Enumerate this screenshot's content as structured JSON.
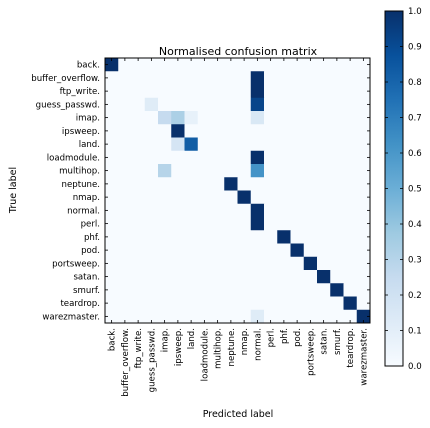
{
  "chart_data": {
    "type": "heatmap",
    "title": "Normalised confusion matrix",
    "xlabel": "Predicted label",
    "ylabel": "True label",
    "labels": [
      "back.",
      "buffer_overflow.",
      "ftp_write.",
      "guess_passwd.",
      "imap.",
      "ipsweep.",
      "land.",
      "loadmodule.",
      "multihop.",
      "neptune.",
      "nmap.",
      "normal.",
      "perl.",
      "phf.",
      "pod.",
      "portsweep.",
      "satan.",
      "smurf.",
      "teardrop.",
      "warezmaster."
    ],
    "matrix": [
      [
        1.0,
        0,
        0,
        0,
        0,
        0,
        0,
        0,
        0,
        0,
        0,
        0,
        0,
        0,
        0,
        0,
        0,
        0,
        0,
        0
      ],
      [
        0,
        0,
        0,
        0,
        0,
        0,
        0,
        0,
        0,
        0,
        0,
        1.0,
        0,
        0,
        0,
        0,
        0,
        0,
        0,
        0
      ],
      [
        0,
        0,
        0,
        0,
        0,
        0,
        0,
        0,
        0,
        0,
        0,
        1.0,
        0,
        0,
        0,
        0,
        0,
        0,
        0,
        0
      ],
      [
        0,
        0,
        0,
        0.12,
        0,
        0,
        0,
        0,
        0,
        0,
        0,
        0.92,
        0,
        0,
        0,
        0,
        0,
        0,
        0,
        0
      ],
      [
        0,
        0,
        0,
        0,
        0.25,
        0.33,
        0.08,
        0,
        0,
        0,
        0,
        0.15,
        0,
        0,
        0,
        0,
        0,
        0,
        0,
        0
      ],
      [
        0,
        0,
        0,
        0,
        0,
        1.0,
        0,
        0,
        0,
        0,
        0,
        0,
        0,
        0,
        0,
        0,
        0,
        0,
        0,
        0
      ],
      [
        0,
        0,
        0,
        0,
        0,
        0.17,
        0.83,
        0,
        0,
        0,
        0,
        0,
        0,
        0,
        0,
        0,
        0,
        0,
        0,
        0
      ],
      [
        0,
        0,
        0,
        0,
        0,
        0,
        0,
        0,
        0,
        0,
        0,
        1.0,
        0,
        0,
        0,
        0,
        0,
        0,
        0,
        0
      ],
      [
        0,
        0,
        0,
        0,
        0.3,
        0,
        0,
        0,
        0,
        0,
        0,
        0.62,
        0,
        0,
        0,
        0,
        0,
        0,
        0,
        0
      ],
      [
        0,
        0,
        0,
        0,
        0,
        0,
        0,
        0,
        0,
        1.0,
        0,
        0,
        0,
        0,
        0,
        0,
        0,
        0,
        0,
        0
      ],
      [
        0,
        0,
        0,
        0,
        0,
        0,
        0,
        0,
        0,
        0,
        1.0,
        0,
        0,
        0,
        0,
        0,
        0,
        0,
        0,
        0
      ],
      [
        0,
        0,
        0,
        0,
        0,
        0,
        0,
        0,
        0,
        0,
        0,
        1.0,
        0,
        0,
        0,
        0,
        0,
        0,
        0,
        0
      ],
      [
        0,
        0,
        0,
        0,
        0,
        0,
        0,
        0,
        0,
        0,
        0,
        1.0,
        0,
        0,
        0,
        0,
        0,
        0,
        0,
        0
      ],
      [
        0,
        0,
        0,
        0,
        0,
        0,
        0,
        0,
        0,
        0,
        0,
        0,
        0,
        1.0,
        0,
        0,
        0,
        0,
        0,
        0
      ],
      [
        0,
        0,
        0,
        0,
        0,
        0,
        0,
        0,
        0,
        0,
        0,
        0,
        0,
        0,
        1.0,
        0,
        0,
        0,
        0,
        0
      ],
      [
        0,
        0,
        0,
        0,
        0,
        0,
        0,
        0,
        0,
        0,
        0,
        0,
        0,
        0,
        0,
        1.0,
        0,
        0,
        0,
        0
      ],
      [
        0,
        0,
        0,
        0,
        0,
        0,
        0,
        0,
        0,
        0,
        0,
        0,
        0,
        0,
        0,
        0,
        1.0,
        0,
        0,
        0
      ],
      [
        0,
        0,
        0,
        0,
        0,
        0,
        0,
        0,
        0,
        0,
        0,
        0,
        0,
        0,
        0,
        0,
        0,
        1.0,
        0,
        0
      ],
      [
        0,
        0,
        0,
        0,
        0,
        0,
        0,
        0,
        0,
        0,
        0,
        0,
        0,
        0,
        0,
        0,
        0,
        0,
        1.0,
        0
      ],
      [
        0,
        0,
        0,
        0,
        0,
        0,
        0,
        0,
        0,
        0,
        0,
        0.12,
        0,
        0,
        0,
        0,
        0,
        0,
        0,
        1.0
      ]
    ],
    "colorbar": {
      "range": [
        0,
        1
      ],
      "ticks": [
        "0.0",
        "0.1",
        "0.2",
        "0.3",
        "0.4",
        "0.5",
        "0.6",
        "0.7",
        "0.8",
        "0.9",
        "1.0"
      ]
    },
    "colormap": [
      "#f7fbff",
      "#deebf7",
      "#c6dbef",
      "#9ecae1",
      "#6baed6",
      "#4292c6",
      "#2171b5",
      "#08519c",
      "#08306b"
    ],
    "grid": false
  }
}
